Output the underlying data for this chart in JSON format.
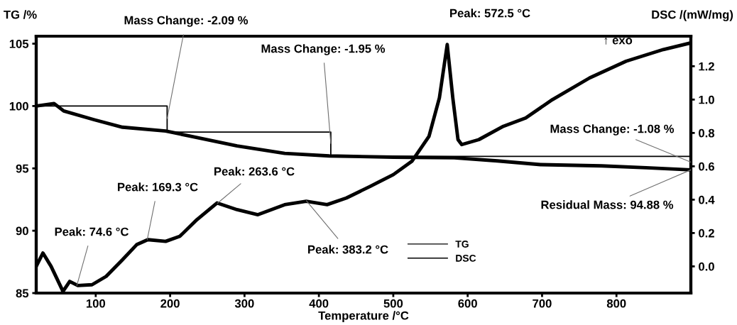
{
  "chart_data": {
    "type": "line",
    "xlabel": "Temperature /°C",
    "ylabel": "TG /%",
    "y2label": "DSC /(mW/mg)",
    "xlim": [
      20,
      900
    ],
    "xticks": [
      100,
      200,
      300,
      400,
      500,
      600,
      700,
      800
    ],
    "ylim": [
      85,
      105.6
    ],
    "yticks": [
      85,
      90,
      95,
      100,
      105
    ],
    "y2lim": [
      -0.16,
      1.38
    ],
    "y2ticks": [
      {
        "value": 0,
        "label": "0.0"
      },
      {
        "value": 0.2,
        "label": "0.2"
      },
      {
        "value": 0.4,
        "label": "0.4"
      },
      {
        "value": 0.6,
        "label": "0.6"
      },
      {
        "value": 0.8,
        "label": "0.8"
      },
      {
        "value": 1.0,
        "label": "1.0"
      },
      {
        "value": 1.2,
        "label": "1.2"
      }
    ],
    "grid": false,
    "legend": "bottom",
    "marker": "none",
    "line_style": "solid",
    "series": [
      {
        "name": "TG",
        "color": "#000000",
        "x": [
          20,
          44,
          57,
          98,
          136,
          194,
          226,
          290,
          354,
          414,
          500,
          582,
          640,
          698,
          780,
          840,
          900
        ],
        "values": [
          100.0,
          100.2,
          99.6,
          98.9,
          98.3,
          98.0,
          97.6,
          96.8,
          96.2,
          96.0,
          95.9,
          95.85,
          95.6,
          95.3,
          95.2,
          95.05,
          94.88
        ]
      },
      {
        "name": "DSC",
        "color": "#000000",
        "axis": "y2",
        "x": [
          20,
          29,
          40,
          56,
          65,
          76,
          95,
          114,
          136,
          155,
          170,
          194,
          213,
          236,
          263,
          290,
          318,
          354,
          383,
          411,
          437,
          469,
          500,
          525,
          548,
          562,
          572.5,
          580,
          587,
          592,
          615,
          648,
          678,
          714,
          764,
          813,
          863,
          900
        ],
        "values": [
          0.0,
          0.08,
          0.0,
          -0.15,
          -0.09,
          -0.115,
          -0.11,
          -0.06,
          0.04,
          0.13,
          0.16,
          0.15,
          0.18,
          0.28,
          0.38,
          0.34,
          0.31,
          0.37,
          0.39,
          0.37,
          0.41,
          0.48,
          0.55,
          0.63,
          0.78,
          1.01,
          1.33,
          1.01,
          0.76,
          0.73,
          0.76,
          0.84,
          0.89,
          1.0,
          1.13,
          1.23,
          1.3,
          1.34
        ]
      },
      {
        "type": "step",
        "color": "#000000",
        "x": [
          20,
          196,
          416,
          900
        ],
        "values": [
          100.0,
          97.91,
          95.96,
          94.88
        ]
      }
    ],
    "annotations": [
      {
        "text": "Mass Change: -2.09 %",
        "x": 196,
        "y": 99.0
      },
      {
        "text": "Mass Change: -1.95 %",
        "x": 416,
        "y": 97.0
      },
      {
        "text": "Mass Change: -1.08 %",
        "x": 900,
        "y": 95.5
      },
      {
        "text": "Residual Mass: 94.88 %",
        "x": 900,
        "y": 94.88
      },
      {
        "text": "Peak: 572.5 °C",
        "x": 572.5,
        "y": 104.9
      },
      {
        "text": "Peak: 74.6 °C",
        "x": 74.6,
        "y": 85.6
      },
      {
        "text": "Peak: 169.3 °C",
        "x": 169.3,
        "y": 89.3
      },
      {
        "text": "Peak: 263.6 °C",
        "x": 263.6,
        "y": 92.2
      },
      {
        "text": "Peak: 383.2 °C",
        "x": 383.2,
        "y": 92.4
      },
      "↑ exo"
    ]
  }
}
